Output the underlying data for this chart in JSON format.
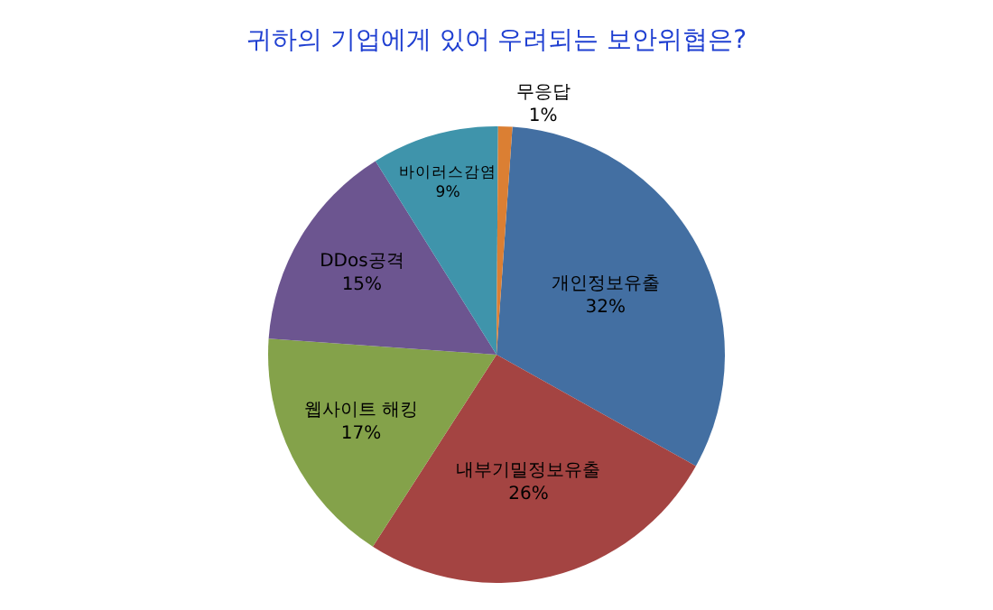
{
  "chart_data": {
    "type": "pie",
    "title": "귀하의 기업에게 있어 우려되는 보안위협은?",
    "categories": [
      "개인정보유출",
      "내부기밀정보유출",
      "웹사이트 해킹",
      "DDos공격",
      "바이러스감염",
      "무응답"
    ],
    "values": [
      32,
      26,
      17,
      15,
      9,
      1
    ],
    "value_labels": [
      "32%",
      "26%",
      "17%",
      "15%",
      "9%",
      "1%"
    ],
    "colors": [
      "#436fa2",
      "#a44442",
      "#84a24a",
      "#6c5590",
      "#3f94ab",
      "#db7f33"
    ],
    "legend": false
  }
}
